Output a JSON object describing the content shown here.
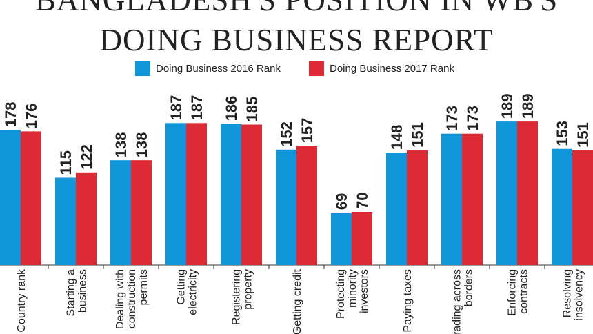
{
  "title_lines": [
    "BANGLADESH'S POSITION IN WB'S",
    "DOING BUSINESS REPORT"
  ],
  "legend": [
    {
      "label": "Doing Business 2016 Rank",
      "color": "#0f96d8"
    },
    {
      "label": "Doing Business 2017 Rank",
      "color": "#de2a34"
    }
  ],
  "chart_data": {
    "type": "bar",
    "title": "BANGLADESH'S POSITION IN WB'S DOING BUSINESS REPORT",
    "categories": [
      [
        "Country rank"
      ],
      [
        "Starting a",
        "business"
      ],
      [
        "Dealing with",
        "construction",
        "permits"
      ],
      [
        "Getting",
        "electricity"
      ],
      [
        "Registering",
        "property"
      ],
      [
        "Getting credit"
      ],
      [
        "Protecting",
        "minority",
        "investors"
      ],
      [
        "Paying taxes"
      ],
      [
        "Trading across",
        "borders"
      ],
      [
        "Enforcing",
        "contracts"
      ],
      [
        "Resolving",
        "insolvency"
      ]
    ],
    "series": [
      {
        "name": "Doing Business 2016 Rank",
        "color": "#0f96d8",
        "values": [
          178,
          115,
          138,
          187,
          186,
          152,
          69,
          148,
          173,
          189,
          153
        ]
      },
      {
        "name": "Doing Business 2017 Rank",
        "color": "#de2a34",
        "values": [
          176,
          122,
          138,
          187,
          185,
          157,
          70,
          151,
          173,
          189,
          151
        ]
      }
    ],
    "ylim": [
      0,
      190
    ],
    "grid": false,
    "legend_position": "top-center"
  }
}
